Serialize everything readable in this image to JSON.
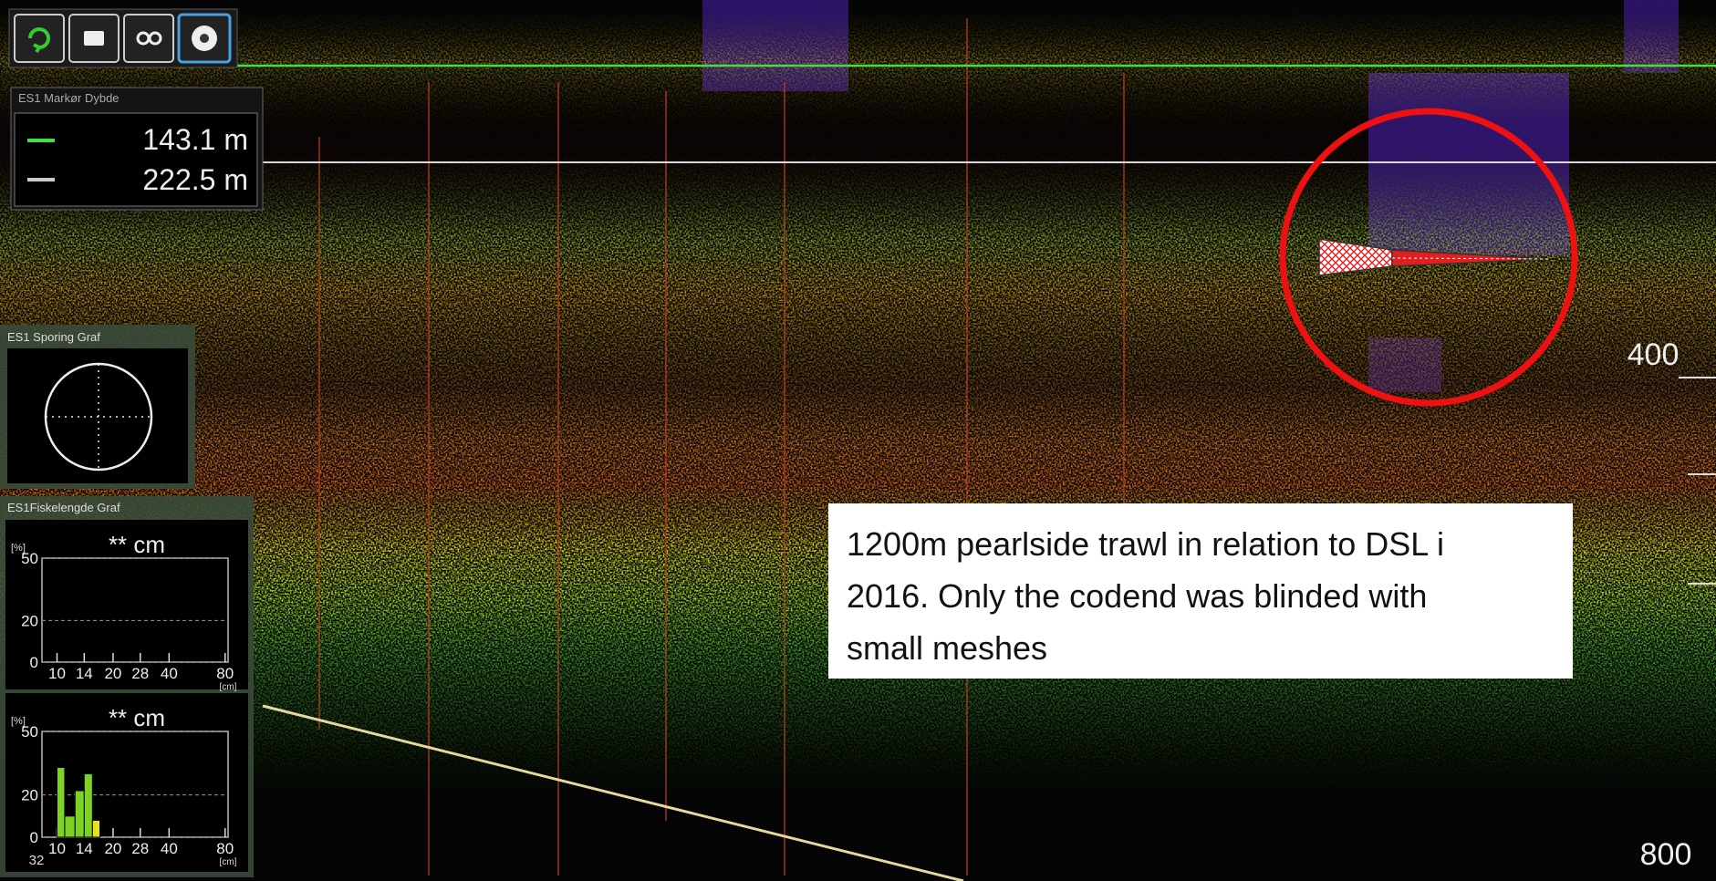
{
  "marker_panel": {
    "title": "ES1 Markør Dybde",
    "markers": [
      "143.1 m",
      "222.5 m"
    ]
  },
  "tracking_panel": {
    "title": "ES1 Sporing Graf"
  },
  "length_panel": {
    "title": "ES1Fiskelengde Graf",
    "graphs": [
      {
        "title": "** cm",
        "y_unit": "[%]",
        "x_unit": "[cm]",
        "x_log": true,
        "xlim": [
          8.3,
          83
        ],
        "xticks": [
          10,
          14,
          20,
          28,
          40,
          80
        ],
        "ylim": [
          0,
          50
        ],
        "yticks": [
          0,
          20,
          50
        ],
        "grid": true
      },
      {
        "title": "** cm",
        "y_unit": "[%]",
        "x_unit": "[cm]",
        "x_log": true,
        "corner_label": "32",
        "xlim": [
          8.3,
          83
        ],
        "xticks": [
          10,
          14,
          20,
          28,
          40,
          80
        ],
        "ylim": [
          0,
          50
        ],
        "yticks": [
          0,
          20,
          50
        ],
        "grid": true,
        "bins": [
          10,
          11,
          12.5,
          14,
          15.5,
          17
        ],
        "counts": [
          33,
          10,
          22,
          30,
          8
        ],
        "colors": [
          "#7ed321",
          "#7ed321",
          "#7ed321",
          "#7ed321",
          "#e8e020"
        ]
      }
    ]
  },
  "depth_scale": {
    "labels": [
      "400",
      "800"
    ]
  },
  "annotation": {
    "text": "1200m pearlside trawl in relation to DSL i 2016. Only the codend was blinded with small meshes"
  }
}
